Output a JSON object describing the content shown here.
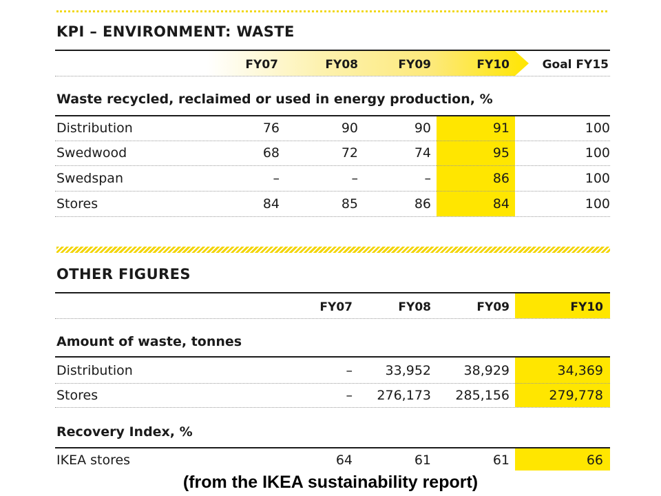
{
  "kpi": {
    "title": "KPI – ENVIRONMENT: WASTE",
    "columns": [
      "FY07",
      "FY08",
      "FY09",
      "FY10",
      "Goal FY15"
    ],
    "subtitle": "Waste recycled, reclaimed or used in energy production, %",
    "rows": [
      {
        "label": "Distribution",
        "values": [
          "76",
          "90",
          "90",
          "91",
          "100"
        ]
      },
      {
        "label": "Swedwood",
        "values": [
          "68",
          "72",
          "74",
          "95",
          "100"
        ]
      },
      {
        "label": "Swedspan",
        "values": [
          "–",
          "–",
          "–",
          "86",
          "100"
        ]
      },
      {
        "label": "Stores",
        "values": [
          "84",
          "85",
          "86",
          "84",
          "100"
        ]
      }
    ]
  },
  "other": {
    "title": "OTHER FIGURES",
    "columns": [
      "FY07",
      "FY08",
      "FY09",
      "FY10"
    ],
    "waste": {
      "subtitle": "Amount of waste, tonnes",
      "rows": [
        {
          "label": "Distribution",
          "values": [
            "–",
            "33,952",
            "38,929",
            "34,369"
          ]
        },
        {
          "label": "Stores",
          "values": [
            "–",
            "276,173",
            "285,156",
            "279,778"
          ]
        }
      ]
    },
    "recovery": {
      "subtitle": "Recovery Index, %",
      "rows": [
        {
          "label": "IKEA stores",
          "values": [
            "64",
            "61",
            "61",
            "66"
          ]
        }
      ]
    }
  },
  "colors": {
    "highlight": "#ffe600",
    "hatch": "#f3d400"
  },
  "caption": "(from the IKEA sustainability report)"
}
